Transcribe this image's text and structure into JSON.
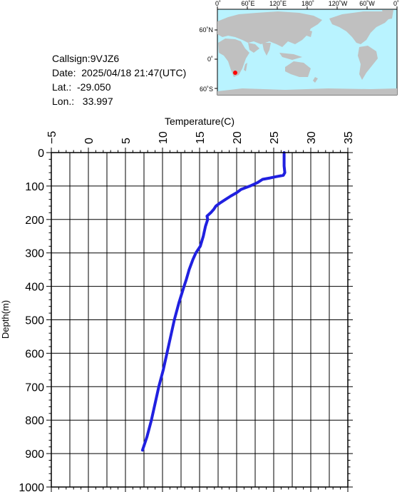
{
  "station": {
    "callsign": "Callsign:9VJZ6",
    "date": "Date:  2025/04/18 21:47(UTC)",
    "lat": "Lat.:  -29.050",
    "lon": "Lon.:   33.997"
  },
  "map": {
    "top_labels": [
      "0˚",
      "60˚E",
      "120˚E",
      "180˚",
      "120˚W",
      "60˚W",
      "0˚"
    ],
    "left_labels": [
      "60˚N",
      "0˚",
      "60˚S"
    ],
    "ocean_color": "#b9f3ff",
    "land_color": "#c0c0c0",
    "marker_color": "#ff0000"
  },
  "chart_data": {
    "type": "line",
    "xlabel": "Temperature(C)",
    "ylabel": "Depth(m)",
    "xlim": [
      -5,
      35
    ],
    "ylim": [
      1000,
      0
    ],
    "x_ticks": [
      "−5",
      "0",
      "5",
      "10",
      "15",
      "20",
      "25",
      "30",
      "35"
    ],
    "y_ticks": [
      "0",
      "100",
      "200",
      "300",
      "400",
      "500",
      "600",
      "700",
      "800",
      "900",
      "1000"
    ],
    "grid": true,
    "line_color": "#2020e0",
    "series": [
      {
        "depth": [
          0,
          20,
          40,
          60,
          68,
          72,
          76,
          80,
          90,
          100,
          110,
          120,
          130,
          140,
          150,
          160,
          170,
          180,
          190,
          200,
          220,
          250,
          280,
          300,
          320,
          350,
          380,
          400,
          450,
          500,
          550,
          600,
          650,
          700,
          750,
          800,
          850,
          890
        ],
        "temp": [
          26.4,
          26.4,
          26.4,
          26.5,
          26.3,
          25.3,
          24.5,
          23.5,
          22.8,
          21.8,
          20.6,
          20.0,
          19.2,
          18.5,
          17.8,
          17.2,
          16.9,
          16.5,
          16.0,
          16.1,
          15.8,
          15.5,
          15.1,
          14.5,
          14.1,
          13.6,
          13.2,
          12.9,
          12.2,
          11.6,
          11.1,
          10.6,
          10.1,
          9.5,
          9.0,
          8.5,
          7.9,
          7.3
        ]
      }
    ]
  }
}
